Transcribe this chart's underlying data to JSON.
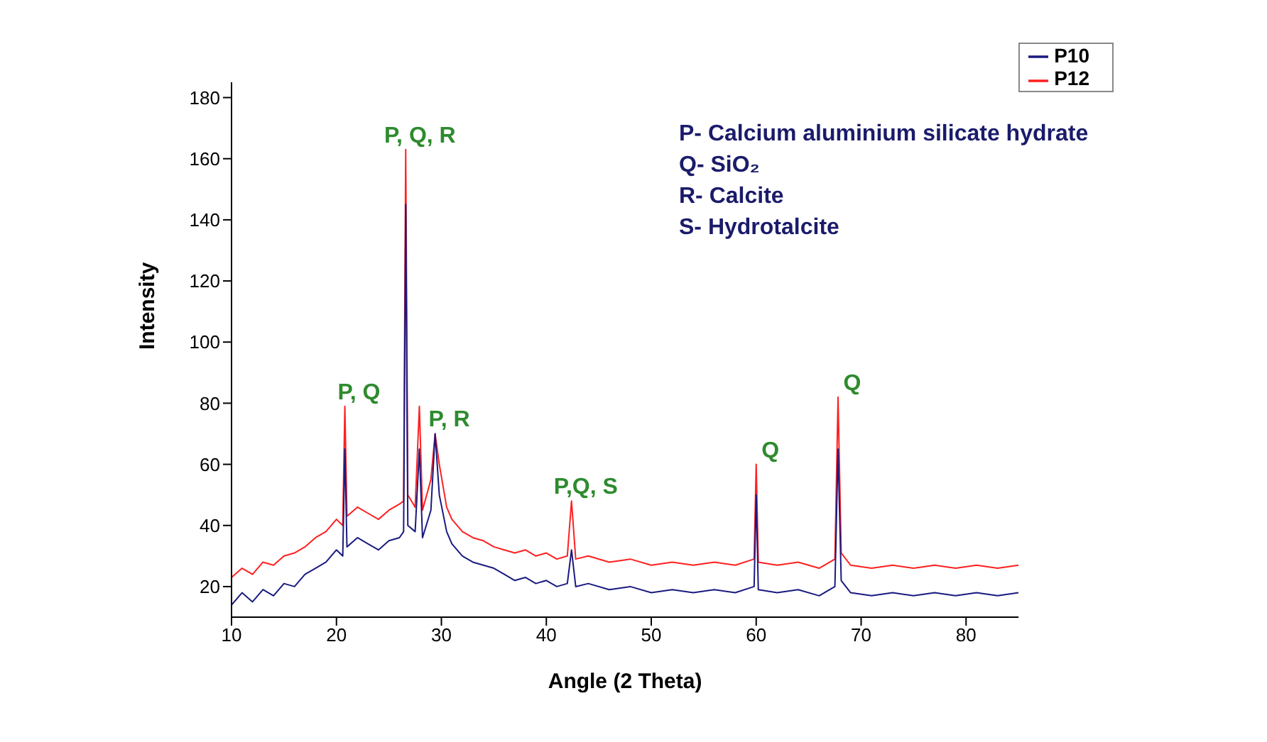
{
  "chart_data": {
    "type": "line",
    "xlabel": "Angle (2 Theta)",
    "ylabel": "Intensity",
    "xlim": [
      10,
      85
    ],
    "xticks": [
      10,
      20,
      30,
      40,
      50,
      60,
      70,
      80
    ],
    "ylim": [
      10,
      185
    ],
    "yticks": [
      20,
      40,
      60,
      80,
      100,
      120,
      140,
      160,
      180
    ],
    "grid": false,
    "legend": "top right",
    "marker": "none",
    "line_style": "solid",
    "series": [
      {
        "name": "P10",
        "color": "#1a1a80",
        "x": [
          10,
          11,
          12,
          13,
          14,
          15,
          16,
          17,
          18,
          19,
          20,
          20.6,
          20.8,
          21,
          22,
          23,
          24,
          25,
          26,
          26.4,
          26.6,
          26.8,
          27.5,
          27.9,
          28.2,
          29,
          29.4,
          29.8,
          30.5,
          31,
          32,
          33,
          34,
          35,
          36,
          37,
          38,
          39,
          40,
          41,
          42,
          42.4,
          42.8,
          44,
          46,
          48,
          50,
          52,
          54,
          56,
          58,
          59.8,
          60,
          60.2,
          62,
          64,
          66,
          67.5,
          67.8,
          68.1,
          69,
          71,
          73,
          75,
          77,
          79,
          81,
          83,
          85
        ],
        "values": [
          14,
          18,
          15,
          19,
          17,
          21,
          20,
          24,
          26,
          28,
          32,
          30,
          65,
          33,
          36,
          34,
          32,
          35,
          36,
          38,
          145,
          40,
          38,
          65,
          36,
          45,
          70,
          50,
          38,
          34,
          30,
          28,
          27,
          26,
          24,
          22,
          23,
          21,
          22,
          20,
          21,
          32,
          20,
          21,
          19,
          20,
          18,
          19,
          18,
          19,
          18,
          20,
          50,
          19,
          18,
          19,
          17,
          20,
          65,
          22,
          18,
          17,
          18,
          17,
          18,
          17,
          18,
          17,
          18
        ]
      },
      {
        "name": "P12",
        "color": "#ff2020",
        "x": [
          10,
          11,
          12,
          13,
          14,
          15,
          16,
          17,
          18,
          19,
          20,
          20.6,
          20.8,
          21,
          22,
          23,
          24,
          25,
          26,
          26.4,
          26.6,
          26.8,
          27.5,
          27.9,
          28.2,
          29,
          29.4,
          29.8,
          30.5,
          31,
          32,
          33,
          34,
          35,
          36,
          37,
          38,
          39,
          40,
          41,
          42,
          42.4,
          42.8,
          44,
          46,
          48,
          50,
          52,
          54,
          56,
          58,
          59.8,
          60,
          60.2,
          62,
          64,
          66,
          67.5,
          67.8,
          68.1,
          69,
          71,
          73,
          75,
          77,
          79,
          81,
          83,
          85
        ],
        "values": [
          23,
          26,
          24,
          28,
          27,
          30,
          31,
          33,
          36,
          38,
          42,
          40,
          79,
          43,
          46,
          44,
          42,
          45,
          47,
          48,
          163,
          50,
          46,
          79,
          45,
          55,
          70,
          60,
          46,
          42,
          38,
          36,
          35,
          33,
          32,
          31,
          32,
          30,
          31,
          29,
          30,
          48,
          29,
          30,
          28,
          29,
          27,
          28,
          27,
          28,
          27,
          29,
          60,
          28,
          27,
          28,
          26,
          29,
          82,
          31,
          27,
          26,
          27,
          26,
          27,
          26,
          27,
          26,
          27
        ]
      }
    ],
    "annotations": [
      {
        "text": "P, Q, R",
        "x": 26.6,
        "y": 163
      },
      {
        "text": "P, Q",
        "x": 20.8,
        "y": 79
      },
      {
        "text": "P, R",
        "x": 29.4,
        "y": 70
      },
      {
        "text": "P,Q, S",
        "x": 42.4,
        "y": 48
      },
      {
        "text": "Q",
        "x": 60,
        "y": 60
      },
      {
        "text": "Q",
        "x": 67.8,
        "y": 82
      },
      "P- Calcium aluminium silicate hydrate",
      "Q- SiO₂",
      "R- Calcite",
      "S- Hydrotalcite"
    ]
  }
}
